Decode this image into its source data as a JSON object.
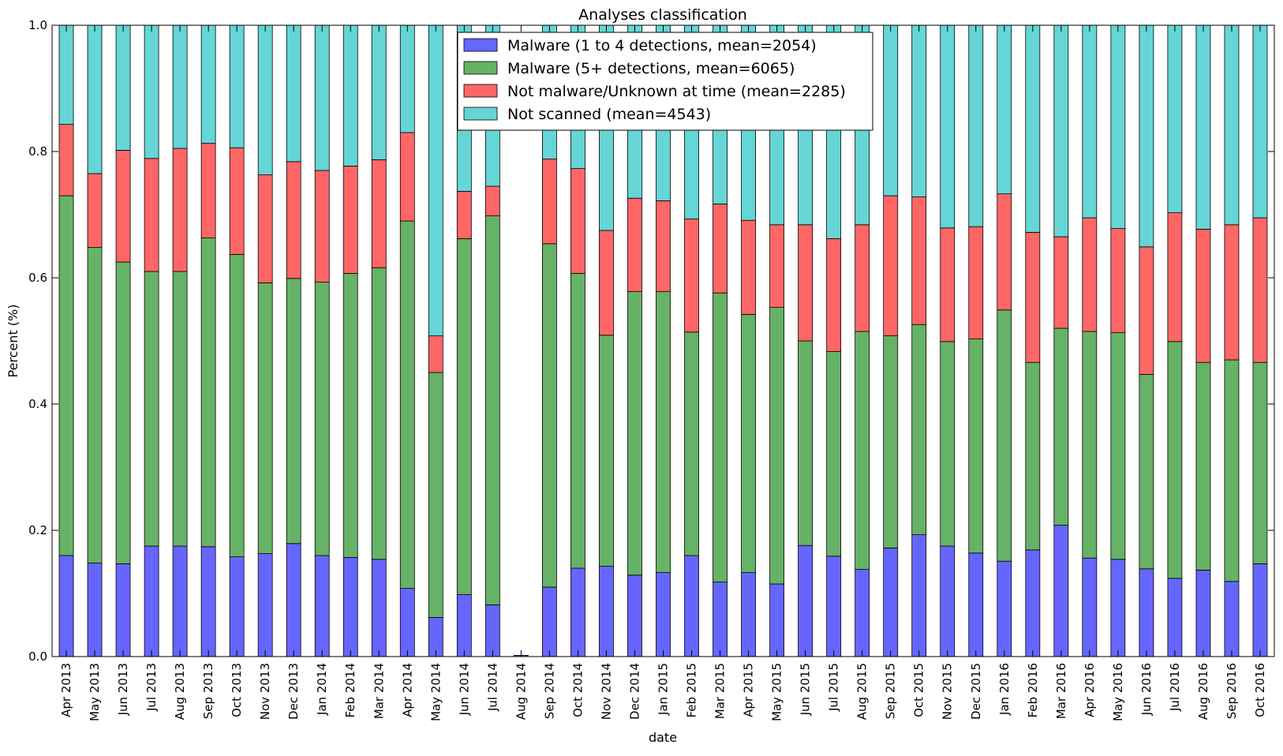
{
  "chart_data": {
    "type": "bar",
    "stacked": true,
    "title": "Analyses classification",
    "xlabel": "date",
    "ylabel": "Percent (%)",
    "ylim": [
      0,
      1.0
    ],
    "yticks": [
      "0.0",
      "0.2",
      "0.4",
      "0.6",
      "0.8",
      "1.0"
    ],
    "legend_position": "top-center",
    "grid": false,
    "categories": [
      "Apr 2013",
      "May 2013",
      "Jun 2013",
      "Jul 2013",
      "Aug 2013",
      "Sep 2013",
      "Oct 2013",
      "Nov 2013",
      "Dec 2013",
      "Jan 2014",
      "Feb 2014",
      "Mar 2014",
      "Apr 2014",
      "May 2014",
      "Jun 2014",
      "Jul 2014",
      "Aug 2014",
      "Sep 2014",
      "Oct 2014",
      "Nov 2014",
      "Dec 2014",
      "Jan 2015",
      "Feb 2015",
      "Mar 2015",
      "Apr 2015",
      "May 2015",
      "Jun 2015",
      "Jul 2015",
      "Aug 2015",
      "Sep 2015",
      "Oct 2015",
      "Nov 2015",
      "Dec 2015",
      "Jan 2016",
      "Feb 2016",
      "Mar 2016",
      "Apr 2016",
      "May 2016",
      "Jun 2016",
      "Jul 2016",
      "Aug 2016",
      "Sep 2016",
      "Oct 2016"
    ],
    "series": [
      {
        "name": "Malware (1 to 4 detections, mean=2054)",
        "color": "#6666ff",
        "values": [
          0.16,
          0.148,
          0.147,
          0.175,
          0.175,
          0.174,
          0.158,
          0.163,
          0.179,
          0.16,
          0.157,
          0.154,
          0.108,
          0.062,
          0.098,
          0.082,
          0.002,
          0.11,
          0.14,
          0.143,
          0.129,
          0.133,
          0.16,
          0.118,
          0.133,
          0.115,
          0.176,
          0.159,
          0.138,
          0.172,
          0.193,
          0.175,
          0.164,
          0.151,
          0.169,
          0.208,
          0.156,
          0.154,
          0.139,
          0.124,
          0.137,
          0.119,
          0.147
        ]
      },
      {
        "name": "Malware (5+ detections, mean=6065)",
        "color": "#66b266",
        "values": [
          0.57,
          0.5,
          0.478,
          0.435,
          0.435,
          0.489,
          0.479,
          0.429,
          0.42,
          0.433,
          0.45,
          0.462,
          0.582,
          0.388,
          0.564,
          0.616,
          0.0,
          0.544,
          0.467,
          0.366,
          0.449,
          0.445,
          0.354,
          0.458,
          0.409,
          0.438,
          0.324,
          0.324,
          0.377,
          0.336,
          0.333,
          0.324,
          0.339,
          0.398,
          0.297,
          0.312,
          0.359,
          0.359,
          0.308,
          0.375,
          0.329,
          0.351,
          0.319
        ]
      },
      {
        "name": "Not malware/Unknown at time (mean=2285)",
        "color": "#ff6666",
        "values": [
          0.113,
          0.117,
          0.177,
          0.179,
          0.195,
          0.15,
          0.169,
          0.171,
          0.185,
          0.177,
          0.17,
          0.171,
          0.14,
          0.058,
          0.075,
          0.047,
          0.0,
          0.134,
          0.166,
          0.166,
          0.148,
          0.144,
          0.179,
          0.141,
          0.149,
          0.131,
          0.184,
          0.179,
          0.169,
          0.222,
          0.202,
          0.18,
          0.178,
          0.184,
          0.206,
          0.145,
          0.18,
          0.165,
          0.202,
          0.204,
          0.211,
          0.214,
          0.229
        ]
      },
      {
        "name": "Not scanned (mean=4543)",
        "color": "#66d5d5",
        "values": [
          0.157,
          0.235,
          0.198,
          0.211,
          0.195,
          0.187,
          0.194,
          0.237,
          0.216,
          0.23,
          0.223,
          0.213,
          0.17,
          0.492,
          0.263,
          0.255,
          0.0,
          0.212,
          0.227,
          0.325,
          0.274,
          0.278,
          0.307,
          0.283,
          0.309,
          0.316,
          0.316,
          0.338,
          0.316,
          0.27,
          0.272,
          0.321,
          0.319,
          0.267,
          0.328,
          0.335,
          0.305,
          0.322,
          0.351,
          0.297,
          0.323,
          0.316,
          0.305
        ]
      }
    ]
  }
}
